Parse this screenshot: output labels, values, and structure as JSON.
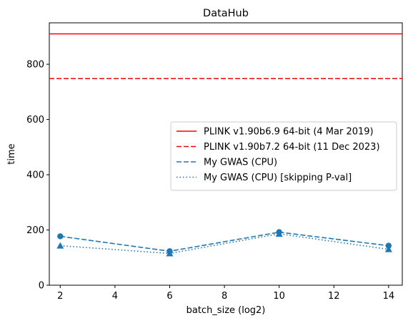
{
  "chart_data": {
    "type": "line",
    "title": "DataHub",
    "xlabel": "batch_size (log2)",
    "ylabel": "time",
    "xlim": [
      1.6,
      14.5
    ],
    "ylim": [
      0,
      950
    ],
    "xticks": [
      2,
      4,
      6,
      8,
      10,
      12,
      14
    ],
    "yticks": [
      0,
      200,
      400,
      600,
      800
    ],
    "grid": false,
    "legend_position": "center-right",
    "hlines": [
      {
        "name": "PLINK v1.90b6.9 64-bit (4 Mar 2019)",
        "y": 910,
        "color": "#ff0000",
        "style": "solid"
      },
      {
        "name": "PLINK v1.90b7.2 64-bit (11 Dec 2023)",
        "y": 748,
        "color": "#ff0000",
        "style": "dashed"
      }
    ],
    "x": [
      2,
      6,
      10,
      14
    ],
    "series": [
      {
        "name": "My GWAS (CPU)",
        "values": [
          177,
          123,
          192,
          143
        ],
        "color": "#1f77b4",
        "style": "dashed",
        "marker": "circle"
      },
      {
        "name": "My GWAS (CPU) [skipping P-val]",
        "values": [
          143,
          115,
          186,
          130
        ],
        "color": "#1f77b4",
        "style": "dotted",
        "marker": "triangle"
      }
    ]
  }
}
